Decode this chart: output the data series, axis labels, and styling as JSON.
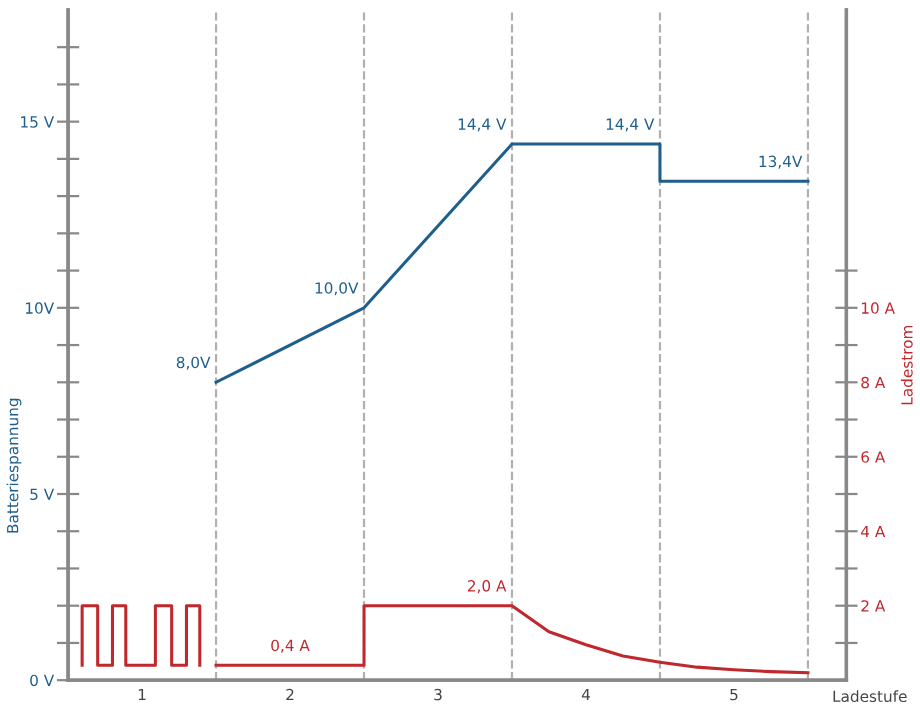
{
  "chart_data": {
    "type": "line",
    "xlabel": "Ladestufe",
    "ylabel": "Batteriespannung",
    "y2label": "Ladestrom",
    "x": [
      1,
      2,
      3,
      4,
      4,
      5
    ],
    "series": [
      {
        "color": "#1f5f8b",
        "values": [
          8.0,
          10.0,
          14.4,
          14.4,
          13.4,
          13.4
        ]
      },
      {
        "color": "#c0282d",
        "axis": "y2",
        "x": [
          0.095,
          0.095,
          0.2,
          0.2,
          0.3,
          0.3,
          0.39,
          0.39,
          0.59,
          0.59,
          0.7,
          0.7,
          0.8,
          0.8,
          0.89,
          0.89,
          0.95,
          1.0,
          2.0,
          2.0,
          3.0,
          3.25,
          3.5,
          3.75,
          4.0,
          4.25,
          4.5,
          4.75,
          5.0
        ],
        "values": [
          0.4,
          2.0,
          2.0,
          0.4,
          0.4,
          2.0,
          2.0,
          0.4,
          0.4,
          2.0,
          2.0,
          0.4,
          0.4,
          2.0,
          2.0,
          0.4,
          null,
          0.4,
          0.4,
          2.0,
          2.0,
          1.3,
          0.95,
          0.65,
          0.48,
          0.35,
          0.28,
          0.23,
          0.2
        ]
      }
    ],
    "xlim": [
      0,
      5.26
    ],
    "xticks": [
      {
        "value": 0.5,
        "label": "1"
      },
      {
        "value": 1.5,
        "label": "2"
      },
      {
        "value": 2.5,
        "label": "3"
      },
      {
        "value": 3.5,
        "label": "4"
      },
      {
        "value": 4.5,
        "label": "5"
      }
    ],
    "ylim": [
      0,
      18
    ],
    "yticks": [
      {
        "value": 0,
        "label": "0 V"
      },
      {
        "value": 1,
        "label": null
      },
      {
        "value": 2,
        "label": null
      },
      {
        "value": 3,
        "label": null
      },
      {
        "value": 4,
        "label": null
      },
      {
        "value": 5,
        "label": "5 V"
      },
      {
        "value": 6,
        "label": null
      },
      {
        "value": 7,
        "label": null
      },
      {
        "value": 8,
        "label": null
      },
      {
        "value": 9,
        "label": null
      },
      {
        "value": 10,
        "label": "10V"
      },
      {
        "value": 11,
        "label": null
      },
      {
        "value": 12,
        "label": null
      },
      {
        "value": 13,
        "label": null
      },
      {
        "value": 14,
        "label": null
      },
      {
        "value": 15,
        "label": "15 V"
      },
      {
        "value": 16,
        "label": null
      },
      {
        "value": 17,
        "label": null
      }
    ],
    "y2lim": [
      0,
      18
    ],
    "y2ticks": [
      {
        "value": 1,
        "label": null
      },
      {
        "value": 2,
        "label": "2 A"
      },
      {
        "value": 3,
        "label": null
      },
      {
        "value": 4,
        "label": "4 A"
      },
      {
        "value": 5,
        "label": null
      },
      {
        "value": 6,
        "label": "6 A"
      },
      {
        "value": 7,
        "label": null
      },
      {
        "value": 8,
        "label": "8 A"
      },
      {
        "value": 9,
        "label": null
      },
      {
        "value": 10,
        "label": "10 A"
      },
      {
        "value": 11,
        "label": null
      }
    ],
    "ref_lines": [
      {
        "axis": "x",
        "value": 1,
        "color": "#b0b0b0",
        "line_style": "dashed"
      },
      {
        "axis": "x",
        "value": 2,
        "color": "#b0b0b0",
        "line_style": "dashed"
      },
      {
        "axis": "x",
        "value": 3,
        "color": "#b0b0b0",
        "line_style": "dashed"
      },
      {
        "axis": "x",
        "value": 4,
        "color": "#b0b0b0",
        "line_style": "dashed"
      },
      {
        "axis": "x",
        "value": 5,
        "color": "#b0b0b0",
        "line_style": "dashed"
      }
    ],
    "annotations": [
      {
        "text": "8,0V",
        "x": 1,
        "y": 8.0
      },
      {
        "text": "10,0V",
        "x": 2,
        "y": 10.0
      },
      {
        "text": "14,4 V",
        "x": 3,
        "y": 14.4
      },
      {
        "text": "14,4 V",
        "x": 4,
        "y": 14.4
      },
      {
        "text": "13,4V",
        "x": 5,
        "y": 13.4
      },
      {
        "text": "0,4 A",
        "x": 1.5,
        "y": 0.4
      },
      {
        "text": "2,0 A",
        "x": 3,
        "y": 2.0
      }
    ],
    "grid": false,
    "legend": false,
    "marker": "none",
    "line_style": "solid"
  }
}
